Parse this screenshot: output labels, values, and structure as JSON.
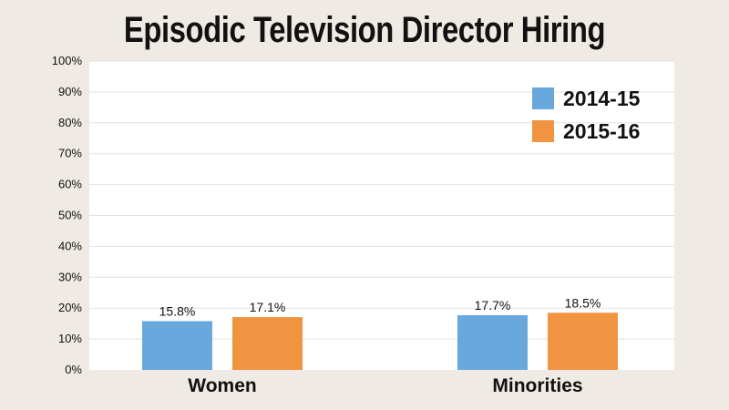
{
  "chart_data": {
    "type": "bar",
    "title": "Episodic Television Director Hiring",
    "categories": [
      "Women",
      "Minorities"
    ],
    "series": [
      {
        "name": "2014-15",
        "values": [
          15.8,
          17.7
        ],
        "labels": [
          "15.8%",
          "17.7%"
        ],
        "color": "#68a8dc"
      },
      {
        "name": "2015-16",
        "values": [
          17.1,
          18.5
        ],
        "labels": [
          "17.1%",
          "18.5%"
        ],
        "color": "#f19441"
      }
    ],
    "y_ticks": [
      "0%",
      "10%",
      "20%",
      "30%",
      "40%",
      "50%",
      "60%",
      "70%",
      "80%",
      "90%",
      "100%"
    ],
    "ylim": [
      0,
      100
    ],
    "xlabel": "",
    "ylabel": "",
    "grid": true,
    "legend_position": "top-right"
  },
  "colors": {
    "background": "#efebe4",
    "plot_background": "#ffffff",
    "gridline": "#e2e2e2"
  }
}
